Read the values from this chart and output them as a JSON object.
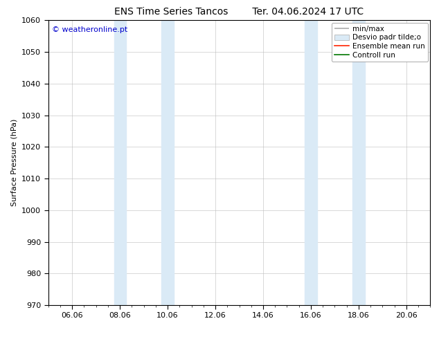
{
  "title": "ENS Time Series Tancos",
  "title2": "Ter. 04.06.2024 17 UTC",
  "ylabel": "Surface Pressure (hPa)",
  "ylim": [
    970,
    1060
  ],
  "yticks": [
    970,
    980,
    990,
    1000,
    1010,
    1020,
    1030,
    1040,
    1050,
    1060
  ],
  "xtick_labels": [
    "06.06",
    "08.06",
    "10.06",
    "12.06",
    "14.06",
    "16.06",
    "18.06",
    "20.06"
  ],
  "xtick_positions": [
    1,
    3,
    5,
    7,
    9,
    11,
    13,
    15
  ],
  "xlim": [
    0,
    16
  ],
  "shaded_regions": [
    {
      "x_start": 2.75,
      "x_end": 3.25
    },
    {
      "x_start": 4.75,
      "x_end": 5.25
    },
    {
      "x_start": 10.75,
      "x_end": 11.25
    },
    {
      "x_start": 12.75,
      "x_end": 13.25
    }
  ],
  "shaded_color": "#daeaf6",
  "watermark_text": "© weatheronline.pt",
  "watermark_color": "#0000cc",
  "legend_labels": [
    "min/max",
    "Desvio padr tilde;o",
    "Ensemble mean run",
    "Controll run"
  ],
  "background_color": "#ffffff",
  "grid_color": "#bbbbbb",
  "title_fontsize": 10,
  "axis_fontsize": 8,
  "tick_fontsize": 8
}
